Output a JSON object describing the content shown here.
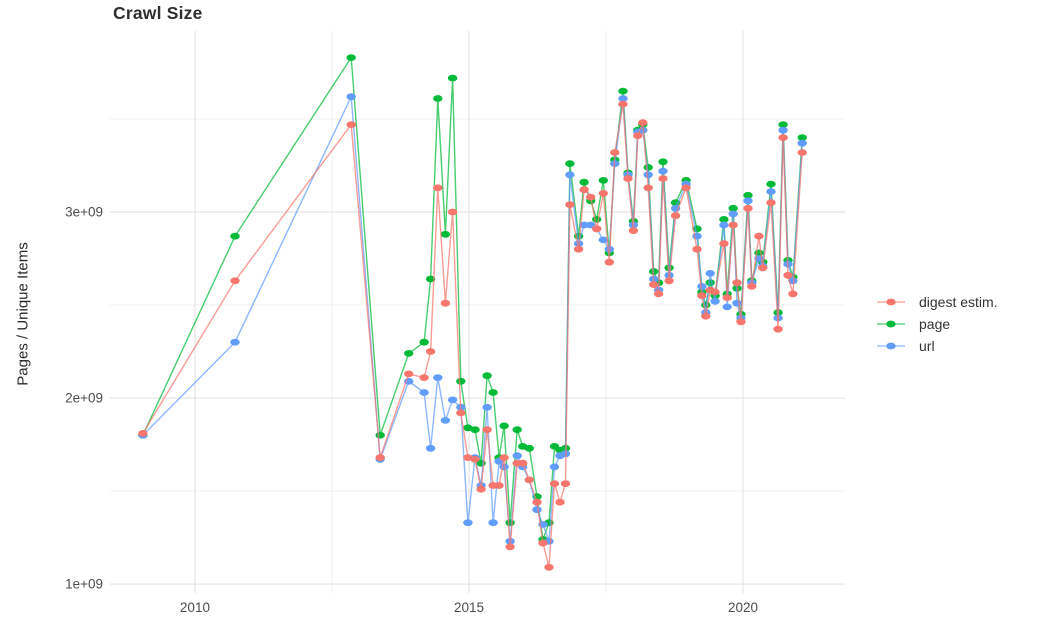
{
  "title": "Crawl Size",
  "y_axis_label": "Pages / Unique Items",
  "legend": {
    "position": "right",
    "items": [
      {
        "label": "digest estim.",
        "color": "#F8766D"
      },
      {
        "label": "page",
        "color": "#00BA38"
      },
      {
        "label": "url",
        "color": "#619CFF"
      }
    ]
  },
  "chart_data": {
    "type": "line",
    "title": "Crawl Size",
    "xlabel": "",
    "ylabel": "Pages / Unique Items",
    "grid": true,
    "legend_position": "right",
    "marker": "point",
    "xlim": [
      2008.45,
      2021.86
    ],
    "ylim": [
      952000000.0,
      3973000000.0
    ],
    "x_ticks": {
      "major": [
        2010,
        2015,
        2020
      ],
      "minor": [
        2012.5,
        2017.5
      ],
      "labels": [
        "2010",
        "2015",
        "2020"
      ]
    },
    "y_ticks": {
      "major": [
        1000000000.0,
        2000000000.0,
        3000000000.0
      ],
      "minor": [
        1500000000.0,
        2500000000.0,
        3500000000.0
      ],
      "labels": [
        "1e+09",
        "2e+09",
        "3e+09"
      ]
    },
    "x": [
      2009.05,
      2010.73,
      2012.85,
      2013.38,
      2013.9,
      2014.18,
      2014.3,
      2014.43,
      2014.57,
      2014.7,
      2014.85,
      2014.98,
      2015.11,
      2015.22,
      2015.33,
      2015.44,
      2015.55,
      2015.64,
      2015.75,
      2015.88,
      2015.98,
      2016.1,
      2016.24,
      2016.35,
      2016.46,
      2016.56,
      2016.66,
      2016.76,
      2016.84,
      2017.0,
      2017.1,
      2017.22,
      2017.33,
      2017.45,
      2017.56,
      2017.66,
      2017.81,
      2017.9,
      2018.0,
      2018.08,
      2018.17,
      2018.27,
      2018.37,
      2018.46,
      2018.54,
      2018.65,
      2018.77,
      2018.96,
      2019.16,
      2019.25,
      2019.32,
      2019.4,
      2019.49,
      2019.65,
      2019.71,
      2019.82,
      2019.89,
      2019.96,
      2020.09,
      2020.16,
      2020.29,
      2020.36,
      2020.51,
      2020.64,
      2020.73,
      2020.82,
      2020.91,
      2021.08
    ],
    "series": [
      {
        "name": "digest estim.",
        "color": "#F8766D",
        "values": [
          1810000000.0,
          2630000000.0,
          3470000000.0,
          1680000000.0,
          2130000000.0,
          2110000000.0,
          2250000000.0,
          3130000000.0,
          2510000000.0,
          3000000000.0,
          1920000000.0,
          1680000000.0,
          1670000000.0,
          1510000000.0,
          1830000000.0,
          1530000000.0,
          1530000000.0,
          1680000000.0,
          1200000000.0,
          1650000000.0,
          1650000000.0,
          1560000000.0,
          1440000000.0,
          1220000000.0,
          1090000000.0,
          1540000000.0,
          1440000000.0,
          1540000000.0,
          3040000000.0,
          2800000000.0,
          3120000000.0,
          3080000000.0,
          2910000000.0,
          3100000000.0,
          2730000000.0,
          3320000000.0,
          3580000000.0,
          3180000000.0,
          2900000000.0,
          3410000000.0,
          3480000000.0,
          3130000000.0,
          2610000000.0,
          2560000000.0,
          3180000000.0,
          2630000000.0,
          2980000000.0,
          3130000000.0,
          2800000000.0,
          2550000000.0,
          2440000000.0,
          2580000000.0,
          2570000000.0,
          2830000000.0,
          2540000000.0,
          2930000000.0,
          2620000000.0,
          2410000000.0,
          3020000000.0,
          2600000000.0,
          2870000000.0,
          2700000000.0,
          3050000000.0,
          2370000000.0,
          3400000000.0,
          2660000000.0,
          2560000000.0,
          3320000000.0
        ]
      },
      {
        "name": "page",
        "color": "#00BA38",
        "values": [
          1800000000.0,
          2870000000.0,
          3830000000.0,
          1800000000.0,
          2240000000.0,
          2300000000.0,
          2640000000.0,
          3610000000.0,
          2880000000.0,
          3720000000.0,
          2090000000.0,
          1840000000.0,
          1830000000.0,
          1650000000.0,
          2120000000.0,
          2030000000.0,
          1680000000.0,
          1850000000.0,
          1330000000.0,
          1830000000.0,
          1740000000.0,
          1730000000.0,
          1470000000.0,
          1240000000.0,
          1330000000.0,
          1740000000.0,
          1720000000.0,
          1730000000.0,
          3260000000.0,
          2870000000.0,
          3160000000.0,
          3060000000.0,
          2960000000.0,
          3170000000.0,
          2780000000.0,
          3280000000.0,
          3650000000.0,
          3210000000.0,
          2950000000.0,
          3440000000.0,
          3470000000.0,
          3240000000.0,
          2680000000.0,
          2620000000.0,
          3270000000.0,
          2700000000.0,
          3050000000.0,
          3170000000.0,
          2910000000.0,
          2570000000.0,
          2500000000.0,
          2620000000.0,
          2550000000.0,
          2960000000.0,
          2560000000.0,
          3020000000.0,
          2590000000.0,
          2450000000.0,
          3090000000.0,
          2630000000.0,
          2780000000.0,
          2730000000.0,
          3150000000.0,
          2460000000.0,
          3470000000.0,
          2740000000.0,
          2650000000.0,
          3400000000.0
        ]
      },
      {
        "name": "url",
        "color": "#619CFF",
        "values": [
          1800000000.0,
          2300000000.0,
          3620000000.0,
          1670000000.0,
          2090000000.0,
          2030000000.0,
          1730000000.0,
          2110000000.0,
          1880000000.0,
          1990000000.0,
          1950000000.0,
          1330000000.0,
          1680000000.0,
          1530000000.0,
          1950000000.0,
          1330000000.0,
          1660000000.0,
          1630000000.0,
          1230000000.0,
          1690000000.0,
          1630000000.0,
          1560000000.0,
          1400000000.0,
          1320000000.0,
          1230000000.0,
          1630000000.0,
          1690000000.0,
          1700000000.0,
          3200000000.0,
          2830000000.0,
          2930000000.0,
          2930000000.0,
          2910000000.0,
          2850000000.0,
          2800000000.0,
          3260000000.0,
          3610000000.0,
          3200000000.0,
          2930000000.0,
          3430000000.0,
          3440000000.0,
          3200000000.0,
          2640000000.0,
          2580000000.0,
          3220000000.0,
          2660000000.0,
          3020000000.0,
          3150000000.0,
          2870000000.0,
          2600000000.0,
          2460000000.0,
          2670000000.0,
          2520000000.0,
          2930000000.0,
          2490000000.0,
          2990000000.0,
          2510000000.0,
          2430000000.0,
          3060000000.0,
          2620000000.0,
          2750000000.0,
          2710000000.0,
          3110000000.0,
          2430000000.0,
          3440000000.0,
          2720000000.0,
          2630000000.0,
          3370000000.0
        ]
      }
    ]
  }
}
